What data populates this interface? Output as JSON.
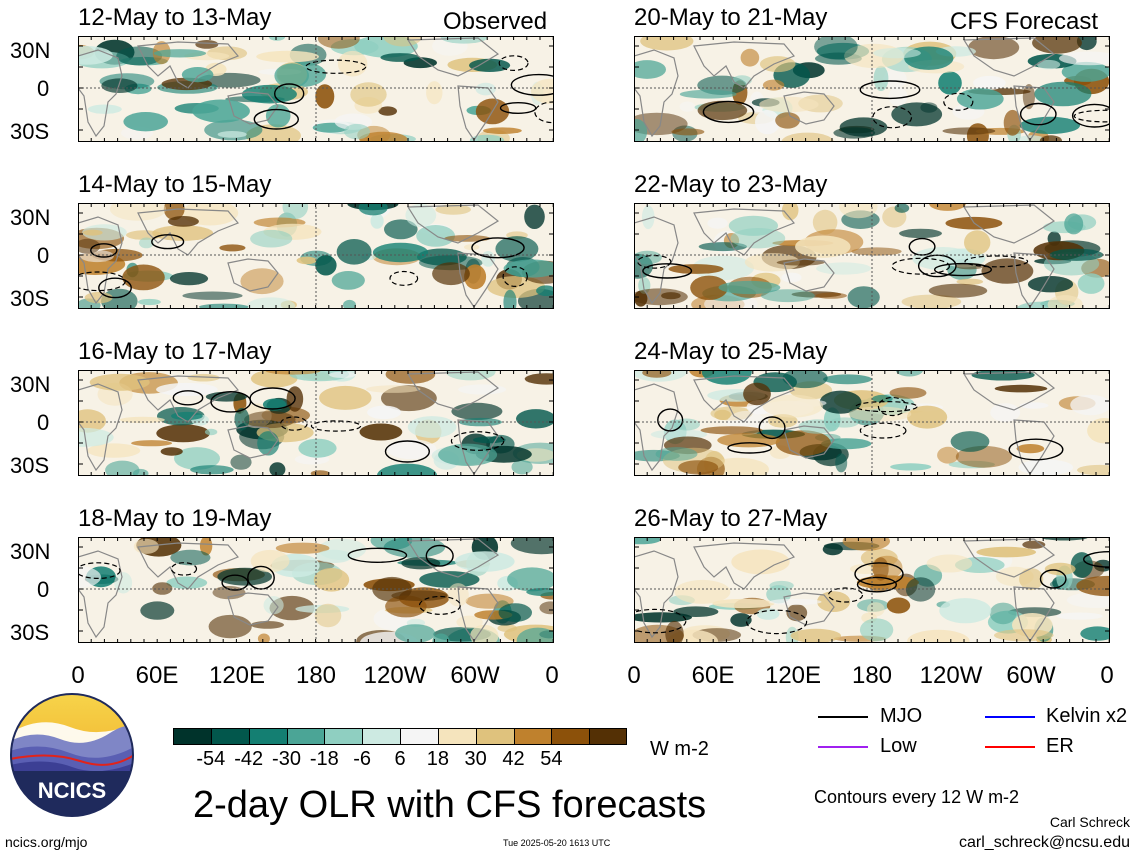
{
  "chart_data": {
    "type": "heatmap",
    "title": "2-day OLR with CFS forecasts",
    "units": "W m-2",
    "contour_note": "Contours every 12 W m-2",
    "lat_ticks": [
      "30N",
      "0",
      "30S"
    ],
    "lon_ticks": [
      "0",
      "60E",
      "120E",
      "180",
      "120W",
      "60W",
      "0"
    ],
    "colorbar": {
      "ticks": [
        "-54",
        "-42",
        "-30",
        "-18",
        "-6",
        "6",
        "18",
        "30",
        "42",
        "54"
      ],
      "colors": [
        "#00332b",
        "#02574c",
        "#147f72",
        "#4ba596",
        "#8fcfc1",
        "#cdeae2",
        "#f5f5f5",
        "#f5e4bd",
        "#dfc27d",
        "#bf812d",
        "#8c510a",
        "#543005"
      ]
    },
    "legend": [
      {
        "name": "MJO",
        "color": "#000000"
      },
      {
        "name": "Kelvin x2",
        "color": "#0000ff"
      },
      {
        "name": "Low",
        "color": "#a020f0"
      },
      {
        "name": "ER",
        "color": "#ff0000"
      }
    ],
    "columns": [
      {
        "label": "Observed",
        "panels": [
          "12-May to 13-May",
          "14-May to 15-May",
          "16-May to 17-May",
          "18-May to 19-May"
        ]
      },
      {
        "label": "CFS Forecast",
        "panels": [
          "20-May to 21-May",
          "22-May to 23-May",
          "24-May to 25-May",
          "26-May to 27-May"
        ]
      }
    ]
  },
  "footer": {
    "logo_text": "NCICS",
    "url": "ncics.org/mjo",
    "timestamp": "Tue 2025-05-20 1613 UTC",
    "author": "Carl Schreck",
    "email": "carl_schreck@ncsu.edu"
  }
}
